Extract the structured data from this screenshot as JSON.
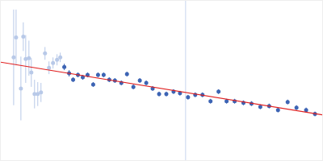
{
  "chart_data": {
    "type": "scatter",
    "xlim": [
      0,
      400
    ],
    "ylim": [
      0,
      200
    ],
    "grid": false,
    "tick_labels": false,
    "series": [
      {
        "type": "line",
        "color": "#c9d6ee",
        "x": [
          230,
          230
        ],
        "values": [
          0,
          200
        ]
      },
      {
        "type": "scatter",
        "color": "#b8c9e8",
        "marker": "circle",
        "x": [
          16,
          19,
          25,
          28,
          31,
          35,
          38,
          42,
          46,
          50,
          55,
          60,
          65,
          70,
          74
        ],
        "values": [
          129,
          154,
          90,
          155,
          127,
          128,
          110,
          83,
          83,
          85,
          134,
          116,
          122,
          126,
          129
        ],
        "error": [
          60,
          35,
          40,
          18,
          30,
          22,
          18,
          18,
          15,
          12,
          8,
          8,
          7,
          7,
          6
        ]
      },
      {
        "type": "scatter",
        "color": "#3d64b4",
        "marker": "circle",
        "x": [
          79,
          85,
          90,
          96,
          102,
          108,
          115,
          121,
          128,
          135,
          142,
          150,
          157,
          165,
          173,
          181,
          189,
          197,
          206,
          215,
          223,
          233,
          242,
          251,
          261,
          271,
          281,
          291,
          302,
          312,
          323,
          334,
          345,
          357,
          368,
          380,
          391
        ],
        "values": [
          117,
          109,
          101,
          107,
          104,
          107,
          95,
          107,
          107,
          101,
          100,
          97,
          108,
          92,
          100,
          97,
          90,
          83,
          83,
          86,
          84,
          79,
          82,
          82,
          74,
          86,
          74,
          74,
          72,
          71,
          67,
          68,
          63,
          73,
          66,
          63,
          58
        ],
        "error": [
          4,
          4,
          3,
          3,
          3,
          3,
          3,
          3,
          3,
          3,
          3,
          3,
          3,
          3,
          3,
          3,
          3,
          3,
          3,
          3,
          3,
          3,
          3,
          3,
          3,
          3,
          3,
          3,
          3,
          3,
          3,
          3,
          3,
          3,
          3,
          3,
          3
        ]
      },
      {
        "type": "line",
        "color": "#e02020",
        "x": [
          0,
          400
        ],
        "values": [
          123,
          57
        ]
      }
    ]
  }
}
